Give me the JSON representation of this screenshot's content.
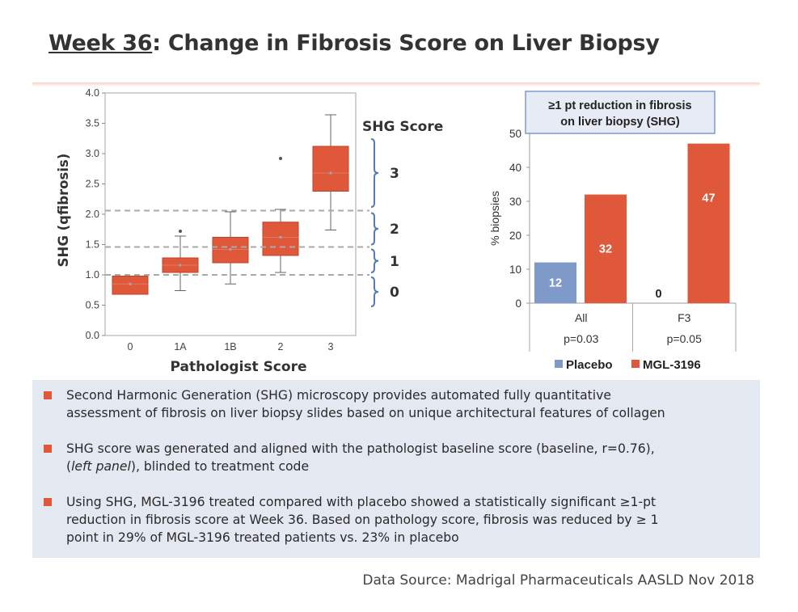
{
  "title": {
    "part1": "Week 36",
    "part2": ": Change in Fibrosis Score on Liver Biopsy"
  },
  "colors": {
    "placebo": "#7f9ac9",
    "mgl": "#e0583a",
    "box_fill": "#e0583a",
    "dashed": "#aaaaaa"
  },
  "chart_data": [
    {
      "type": "box",
      "xlabel": "Pathologist Score",
      "ylabel": "SHG (qfibrosis)",
      "ylim": [
        0,
        4.0
      ],
      "yticks": [
        "0.0",
        "0.5",
        "1.0",
        "1.5",
        "2.0",
        "2.5",
        "3.0",
        "3.5",
        "4.0"
      ],
      "categories": [
        "0",
        "1A",
        "1B",
        "2",
        "3"
      ],
      "boxes": [
        {
          "category": "0",
          "min": 0.68,
          "q1": 0.68,
          "median": 0.85,
          "q3": 0.98,
          "max": 0.98,
          "mean": 0.85,
          "outliers": []
        },
        {
          "category": "1A",
          "min": 0.74,
          "q1": 1.04,
          "median": 1.16,
          "q3": 1.28,
          "max": 1.64,
          "mean": 1.16,
          "outliers": [
            1.72
          ]
        },
        {
          "category": "1B",
          "min": 0.85,
          "q1": 1.2,
          "median": 1.42,
          "q3": 1.62,
          "max": 2.04,
          "mean": 1.42,
          "outliers": []
        },
        {
          "category": "2",
          "min": 1.04,
          "q1": 1.32,
          "median": 1.62,
          "q3": 1.87,
          "max": 2.08,
          "mean": 1.62,
          "outliers": [
            2.92
          ]
        },
        {
          "category": "3",
          "min": 1.74,
          "q1": 2.38,
          "median": 2.68,
          "q3": 3.12,
          "max": 3.64,
          "mean": 2.68,
          "outliers": []
        }
      ],
      "thresholds": [
        1.0,
        1.46,
        2.06
      ],
      "shg_score": {
        "label": "SHG Score",
        "levels": [
          "3",
          "2",
          "1",
          "0"
        ]
      }
    },
    {
      "type": "bar",
      "title": "≥1 pt reduction in fibrosis on liver biopsy (SHG)",
      "title_line1": "≥1 pt reduction in fibrosis",
      "title_line2": "on liver biopsy (SHG)",
      "ylabel": "% biopsies",
      "ylim": [
        0,
        50
      ],
      "yticks": [
        "0",
        "10",
        "20",
        "30",
        "40",
        "50"
      ],
      "categories": [
        "All",
        "F3"
      ],
      "pvalues": [
        "p=0.03",
        "p=0.05"
      ],
      "series": [
        {
          "name": "Placebo",
          "values": [
            12,
            0
          ]
        },
        {
          "name": "MGL-3196",
          "values": [
            32,
            47
          ]
        }
      ],
      "legend": "bottom"
    }
  ],
  "bullets": [
    {
      "line1": "Second Harmonic Generation (SHG) microscopy provides automated fully quantitative",
      "line2": "assessment of fibrosis on liver biopsy slides based on unique architectural features of collagen"
    },
    {
      "line1": "SHG score was generated and aligned with the pathologist baseline score (baseline, r=0.76),",
      "line2_pre": "(",
      "line2_em": "left panel",
      "line2_post": "), blinded to treatment code"
    },
    {
      "line1": "Using SHG, MGL-3196 treated compared with placebo showed a statistically significant ≥1-pt",
      "line2": "reduction in fibrosis score at Week 36. Based on pathology score, fibrosis was reduced by ≥ 1",
      "line3": "point in 29% of MGL-3196 treated patients vs. 23% in placebo"
    }
  ],
  "source": "Data Source: Madrigal Pharmaceuticals AASLD Nov 2018"
}
